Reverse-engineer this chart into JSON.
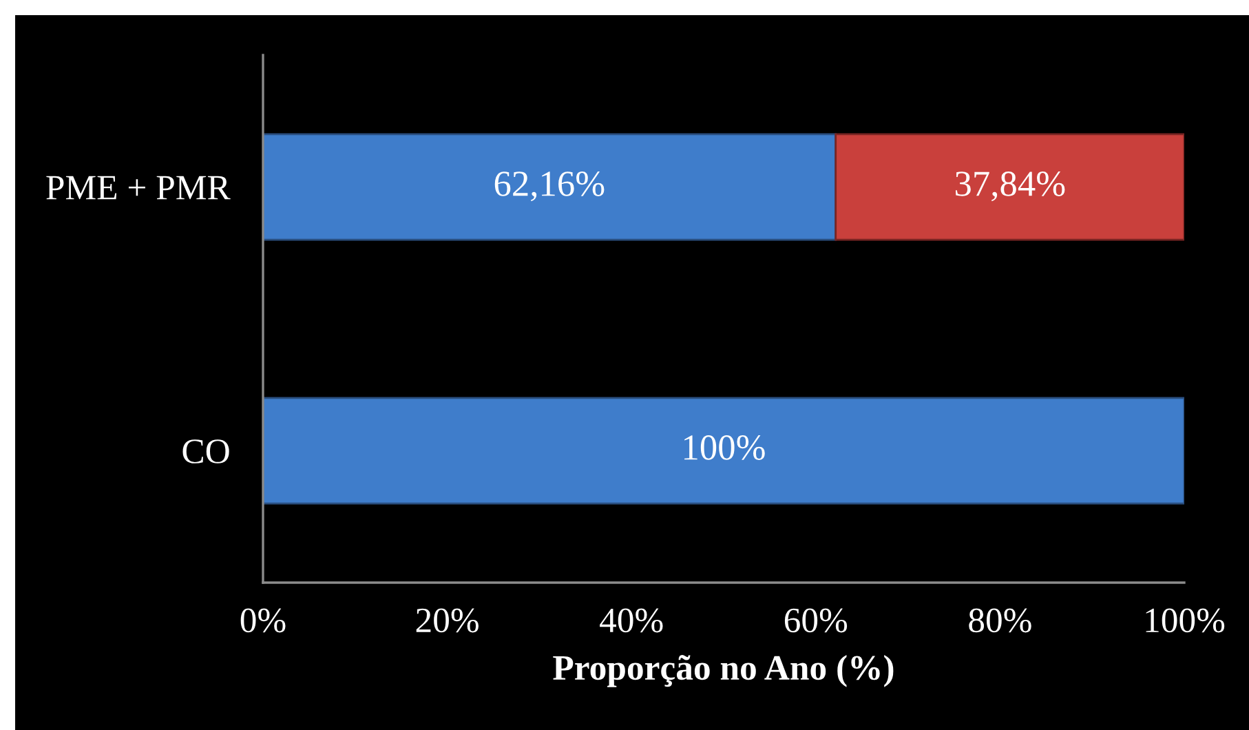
{
  "chart_data": {
    "type": "bar",
    "orientation": "horizontal",
    "stacked": true,
    "categories": [
      "PME + PMR",
      "CO"
    ],
    "series": [
      {
        "color": "#3f7dcb",
        "values": [
          62.16,
          100
        ],
        "value_labels": [
          "62,16%",
          "100%"
        ]
      },
      {
        "color": "#c9403c",
        "values": [
          37.84,
          null
        ],
        "value_labels": [
          "37,84%",
          null
        ]
      }
    ],
    "xlim": [
      0,
      100
    ],
    "xticks": [
      {
        "value": 0,
        "label": "0%"
      },
      {
        "value": 20,
        "label": "20%"
      },
      {
        "value": 40,
        "label": "40%"
      },
      {
        "value": 60,
        "label": "60%"
      },
      {
        "value": 80,
        "label": "80%"
      },
      {
        "value": 100,
        "label": "100%"
      }
    ],
    "xlabel": "Proporção no Ano (%)",
    "grid": false,
    "legend": false
  }
}
